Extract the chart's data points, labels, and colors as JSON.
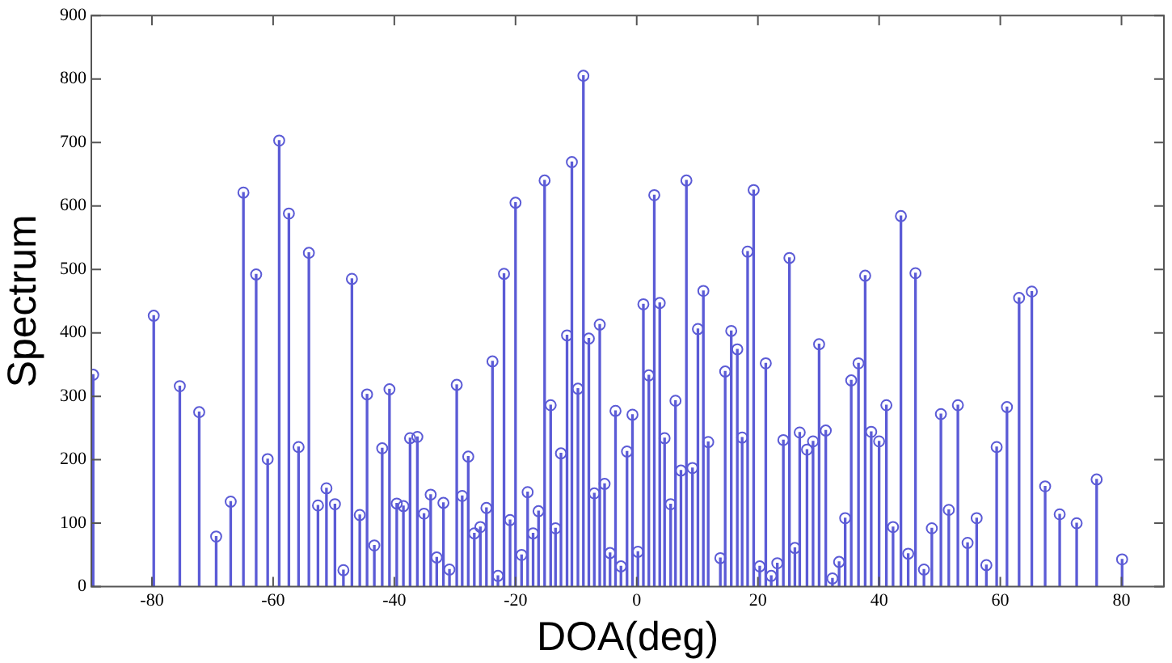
{
  "chart_data": {
    "type": "lollipop",
    "xlabel": "DOA(deg)",
    "ylabel": "Spectrum",
    "x": [
      -89.7,
      -79.7,
      -75.4,
      -72.2,
      -69.4,
      -67,
      -64.9,
      -62.8,
      -60.9,
      -59,
      -57.4,
      -55.8,
      -54.1,
      -52.6,
      -51.2,
      -49.8,
      -48.4,
      -47,
      -45.7,
      -44.5,
      -43.3,
      -42,
      -40.8,
      -39.6,
      -38.5,
      -37.4,
      -36.2,
      -35.1,
      -34,
      -33,
      -31.9,
      -30.9,
      -29.7,
      -28.8,
      -27.8,
      -26.8,
      -25.8,
      -24.8,
      -23.8,
      -22.9,
      -21.9,
      -20.9,
      -20,
      -19,
      -18,
      -17.1,
      -16.2,
      -15.2,
      -14.2,
      -13.4,
      -12.5,
      -11.5,
      -10.7,
      -9.7,
      -8.8,
      -7.9,
      -7,
      -6.1,
      -5.3,
      -4.4,
      -3.5,
      -2.6,
      -1.6,
      -0.7,
      0.2,
      1.1,
      2,
      2.9,
      3.8,
      4.6,
      5.6,
      6.4,
      7.3,
      8.2,
      9.2,
      10.1,
      11,
      11.8,
      13.8,
      14.6,
      15.6,
      16.6,
      17.4,
      18.3,
      19.3,
      20.3,
      21.3,
      22.2,
      23.2,
      24.2,
      25.2,
      26.1,
      26.9,
      28.1,
      29.1,
      30.1,
      31.2,
      32.3,
      33.4,
      34.4,
      35.4,
      36.6,
      37.7,
      38.7,
      40,
      41.2,
      42.3,
      43.6,
      44.8,
      46,
      47.4,
      48.7,
      50.2,
      51.5,
      53,
      54.6,
      56.1,
      57.7,
      59.4,
      61.1,
      63.1,
      65.2,
      67.4,
      69.8,
      72.6,
      75.9,
      80.1
    ],
    "series": [
      {
        "color": "#5b5bd6",
        "values": [
          334,
          427,
          316,
          275,
          79,
          134,
          621,
          492,
          201,
          703,
          588,
          220,
          526,
          128,
          155,
          130,
          26,
          485,
          113,
          303,
          65,
          218,
          311,
          131,
          127,
          234,
          236,
          115,
          145,
          46,
          132,
          27,
          318,
          143,
          205,
          84,
          94,
          124,
          355,
          17,
          493,
          105,
          605,
          50,
          149,
          84,
          119,
          640,
          286,
          92,
          210,
          396,
          669,
          312,
          805,
          391,
          147,
          413,
          162,
          53,
          277,
          32,
          213,
          271,
          55,
          445,
          333,
          617,
          447,
          234,
          130,
          293,
          183,
          640,
          187,
          406,
          466,
          228,
          45,
          339,
          403,
          374,
          235,
          528,
          625,
          32,
          352,
          17,
          37,
          231,
          518,
          61,
          243,
          216,
          229,
          382,
          246,
          13,
          39,
          108,
          325,
          352,
          490,
          244,
          229,
          286,
          94,
          584,
          52,
          494,
          27,
          92,
          272,
          121,
          286,
          69,
          108,
          34,
          220,
          283,
          455,
          465,
          158,
          114,
          100,
          169,
          43
        ]
      }
    ],
    "xlim": [
      -90,
      87
    ],
    "xticks": [
      -80,
      -60,
      -40,
      -20,
      0,
      20,
      40,
      60,
      80
    ],
    "ylim": [
      0,
      900
    ],
    "yticks": [
      0,
      100,
      200,
      300,
      400,
      500,
      600,
      700,
      800,
      900
    ],
    "grid": false,
    "legend": false,
    "marker": "circle"
  }
}
